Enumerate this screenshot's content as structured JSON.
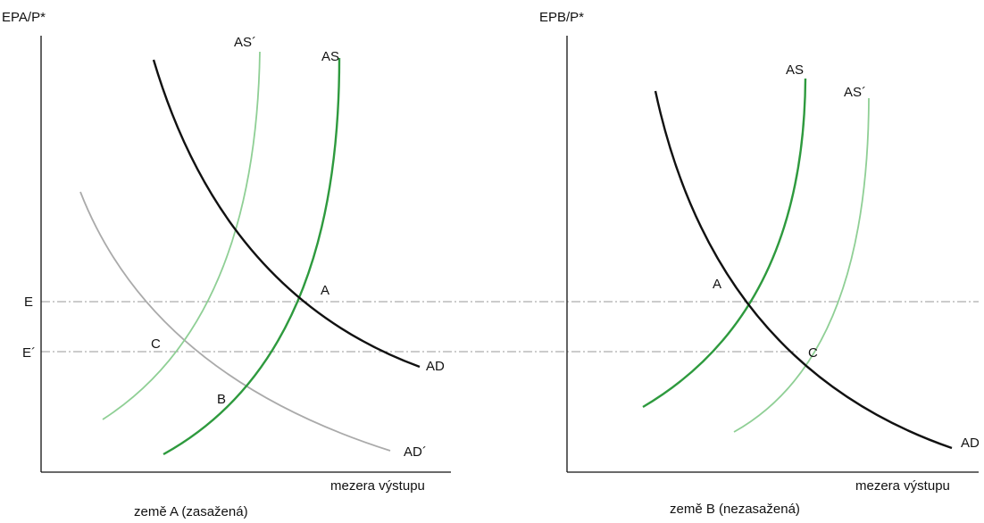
{
  "left_panel": {
    "y_axis_label": "EPA/P*",
    "x_axis_label": "mezera výstupu",
    "caption": "země A (zasažená)",
    "level_labels": {
      "e": "E",
      "e_prime": "E´"
    },
    "curve_labels": {
      "as": "AS",
      "as_prime": "AS´",
      "ad": "AD",
      "ad_prime": "AD´"
    },
    "point_labels": {
      "a": "A",
      "b": "B",
      "c": "C"
    }
  },
  "right_panel": {
    "y_axis_label": "EPB/P*",
    "x_axis_label": "mezera výstupu",
    "caption": "země B (nezasažená)",
    "curve_labels": {
      "as": "AS",
      "as_prime": "AS´",
      "ad": "AD"
    },
    "point_labels": {
      "a": "A",
      "c": "C"
    }
  },
  "colors": {
    "axis": "#111111",
    "ad": "#111111",
    "ad_prime": "#aaaaaa",
    "as": "#2e9a3e",
    "as_prime": "#8fcf95",
    "guide": "#999999"
  }
}
